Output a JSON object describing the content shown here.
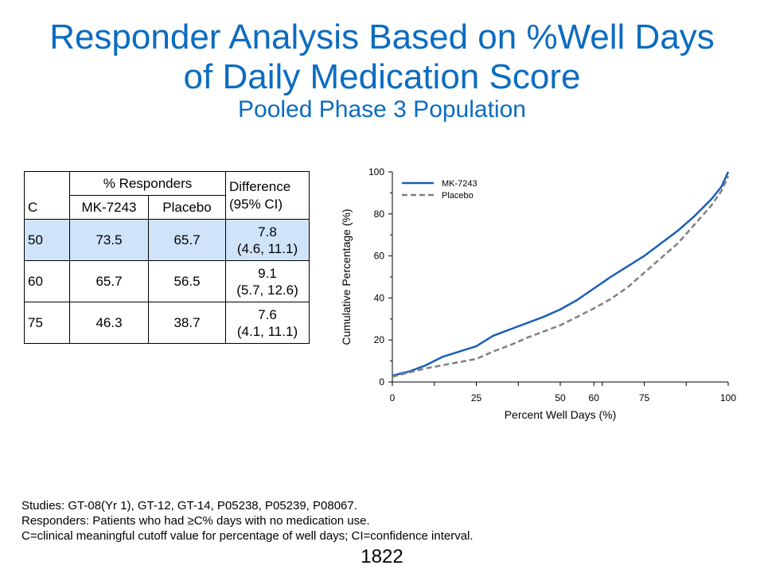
{
  "title": {
    "line1": "Responder Analysis Based on %Well Days",
    "line2": "of Daily Medication Score",
    "subtitle": "Pooled Phase 3 Population"
  },
  "table": {
    "col_c": "C",
    "col_group": "% Responders",
    "col_mk": "MK-7243",
    "col_placebo": "Placebo",
    "col_diff": "Difference\n(95% CI)",
    "rows": [
      {
        "c": "50",
        "mk": "73.5",
        "placebo": "65.7",
        "diff": "7.8",
        "ci": "(4.6, 11.1)"
      },
      {
        "c": "60",
        "mk": "65.7",
        "placebo": "56.5",
        "diff": "9.1",
        "ci": "(5.7, 12.6)"
      },
      {
        "c": "75",
        "mk": "46.3",
        "placebo": "38.7",
        "diff": "7.6",
        "ci": "(4.1, 11.1)"
      }
    ]
  },
  "chart_data": {
    "type": "line",
    "xlabel": "Percent Well Days (%)",
    "ylabel": "Cumulative Percentage (%)",
    "xlim": [
      0,
      100
    ],
    "ylim": [
      0,
      100
    ],
    "xticks": [
      0,
      25,
      50,
      60,
      75,
      100
    ],
    "yticks": [
      0,
      20,
      40,
      60,
      80,
      100
    ],
    "legend_position": "top-left",
    "series": [
      {
        "name": "MK-7243",
        "color": "#1a5fb4",
        "style": "solid",
        "x": [
          0,
          5,
          10,
          15,
          20,
          25,
          30,
          35,
          40,
          45,
          50,
          55,
          60,
          65,
          70,
          75,
          80,
          85,
          90,
          95,
          98,
          100
        ],
        "y": [
          3,
          5,
          8,
          12,
          14.5,
          17,
          22,
          25,
          28,
          31,
          34.5,
          39,
          44.5,
          50,
          55,
          60,
          66,
          72,
          79,
          87,
          93,
          100
        ]
      },
      {
        "name": "Placebo",
        "color": "#808080",
        "style": "dashed",
        "x": [
          0,
          5,
          10,
          15,
          20,
          25,
          30,
          35,
          40,
          45,
          50,
          55,
          60,
          65,
          70,
          75,
          80,
          85,
          90,
          95,
          98,
          100
        ],
        "y": [
          2.5,
          4.5,
          6.5,
          8,
          9.5,
          11,
          14.5,
          17.5,
          21,
          24,
          27,
          31,
          35,
          39.5,
          45,
          52,
          59,
          66,
          75,
          84,
          91,
          98
        ]
      }
    ]
  },
  "footnotes": {
    "line1": "Studies: GT-08(Yr 1), GT-12, GT-14, P05238, P05239, P08067.",
    "line2": "Responders: Patients who had ≥C% days with no medication use.",
    "line3": "C=clinical meaningful cutoff value for percentage of well days; CI=confidence interval."
  },
  "page_number": "1822"
}
